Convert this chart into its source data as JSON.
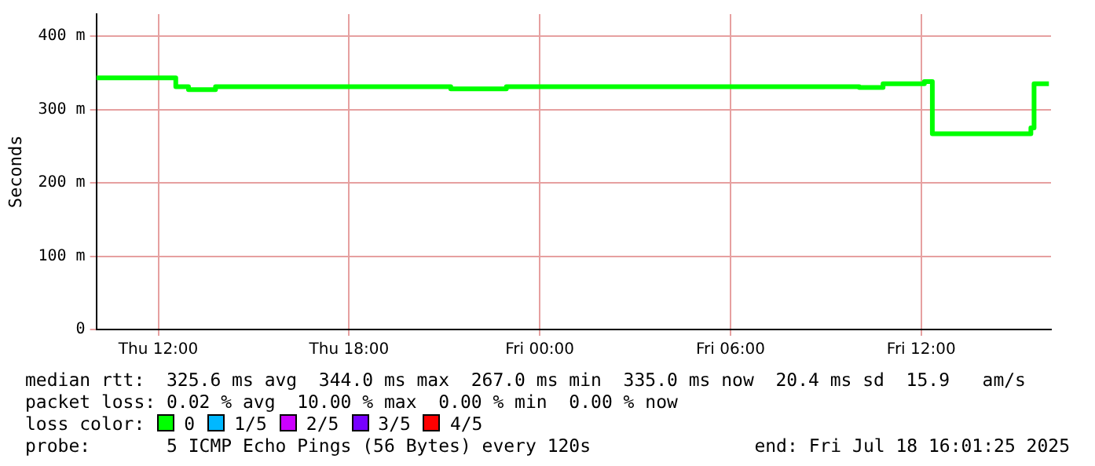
{
  "chart_data": {
    "type": "step",
    "ylabel": "Seconds",
    "legend_title": "loss color:",
    "legend": "bottom",
    "grid": true,
    "xlim": [
      "2025-07-17T10:03",
      "2025-07-18T16:05"
    ],
    "xticks": [
      {
        "value": "2025-07-17T12:00",
        "label": "Thu 12:00"
      },
      {
        "value": "2025-07-17T18:00",
        "label": "Thu 18:00"
      },
      {
        "value": "2025-07-18T00:00",
        "label": "Fri 00:00"
      },
      {
        "value": "2025-07-18T06:00",
        "label": "Fri 06:00"
      },
      {
        "value": "2025-07-18T12:00",
        "label": "Fri 12:00"
      }
    ],
    "ylim": [
      0,
      430
    ],
    "yticks": [
      0,
      {
        "value": 100,
        "label": "100 m"
      },
      {
        "value": 200,
        "label": "200 m"
      },
      {
        "value": 300,
        "label": "300 m"
      },
      {
        "value": 400,
        "label": "400 m"
      }
    ],
    "series": [
      {
        "name": "0",
        "color": "#00ff00",
        "x": [
          "2025-07-17T10:03",
          "2025-07-17T12:33",
          "2025-07-17T12:57",
          "2025-07-17T13:48",
          "2025-07-17T21:12",
          "2025-07-17T22:57",
          "2025-07-18T10:03",
          "2025-07-18T10:48",
          "2025-07-18T12:06",
          "2025-07-18T12:21",
          "2025-07-18T15:27",
          "2025-07-18T15:33",
          "2025-07-18T16:01"
        ],
        "values": [
          343,
          331,
          327,
          331,
          328,
          331,
          330,
          335,
          338,
          267,
          275,
          335,
          335
        ]
      },
      {
        "name": "1/5",
        "color": "#00b8ff"
      },
      {
        "name": "2/5",
        "color": "#cc00ff"
      },
      {
        "name": "3/5",
        "color": "#7700ff"
      },
      {
        "name": "4/5",
        "color": "#ff0000"
      }
    ],
    "annotations": [
      "median rtt:  325.6 ms avg  344.0 ms max  267.0 ms min  335.0 ms now  20.4 ms sd  15.9   am/s",
      "packet loss: 0.02 % avg  10.00 % max  0.00 % min  0.00 % now",
      "probe:       5 ICMP Echo Pings (56 Bytes) every 120s",
      "end: Fri Jul 18 16:01:25 2025"
    ]
  }
}
